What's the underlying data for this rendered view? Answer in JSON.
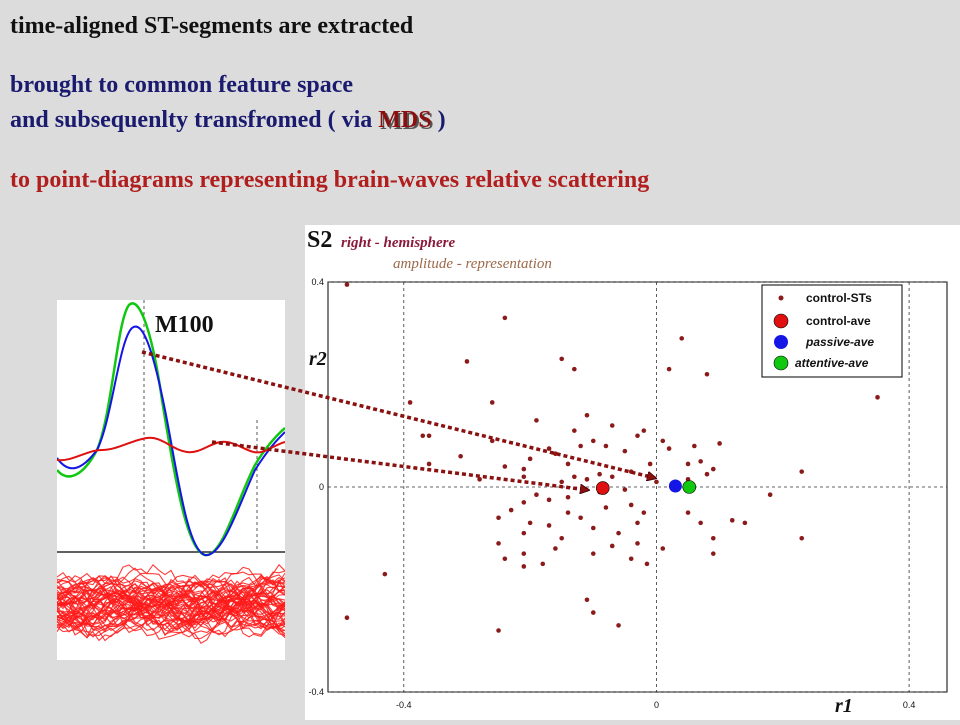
{
  "heading": {
    "line1": "time-aligned ST-segments are extracted",
    "line2": "brought to common feature space",
    "line3_prefix": "and subsequenlty transfromed  ( via ",
    "mds": "MDS",
    "line3_suffix": " )",
    "line4": "to point-diagrams representing  brain-waves relative scattering"
  },
  "waveform": {
    "label": "M100"
  },
  "colors": {
    "background": "#dcdcdc",
    "control": "#8b1a1a",
    "control_ave": "#e01010",
    "passive": "#1515e6",
    "attentive": "#10c810",
    "arrow": "#8b1010"
  },
  "chart_data": {
    "type": "scatter",
    "title": "right - hemisphere",
    "subtitle": "amplitude - representation",
    "ylabel_top": "S2",
    "ylabel": "r2",
    "xlabel": "r1",
    "xlim": [
      -0.52,
      0.46
    ],
    "ylim": [
      -0.4,
      0.4
    ],
    "x_ticks": [
      "-0.4",
      "0",
      "0.4"
    ],
    "y_ticks": [
      "0.4",
      "0",
      "-0.4"
    ],
    "x_tick_values": [
      -0.4,
      0,
      0.4
    ],
    "y_tick_values": [
      0.4,
      0,
      -0.4
    ],
    "grid": "dashed",
    "legend_position": "top-right",
    "series": [
      {
        "name": "control-STs",
        "points": [
          [
            -0.49,
            0.395
          ],
          [
            -0.49,
            -0.255
          ],
          [
            -0.24,
            0.33
          ],
          [
            -0.3,
            0.245
          ],
          [
            -0.15,
            0.25
          ],
          [
            -0.39,
            0.165
          ],
          [
            -0.26,
            0.165
          ],
          [
            -0.26,
            0.09
          ],
          [
            -0.11,
            0.14
          ],
          [
            -0.36,
            0.045
          ],
          [
            -0.37,
            0.1
          ],
          [
            -0.36,
            0.1
          ],
          [
            -0.31,
            0.06
          ],
          [
            -0.24,
            0.04
          ],
          [
            -0.28,
            0.015
          ],
          [
            -0.17,
            0.075
          ],
          [
            -0.2,
            0.055
          ],
          [
            -0.21,
            0.035
          ],
          [
            -0.21,
            0.02
          ],
          [
            -0.19,
            0.13
          ],
          [
            -0.16,
            0.065
          ],
          [
            -0.14,
            0.045
          ],
          [
            -0.13,
            0.11
          ],
          [
            -0.12,
            0.08
          ],
          [
            -0.1,
            0.09
          ],
          [
            -0.08,
            0.08
          ],
          [
            -0.07,
            0.12
          ],
          [
            -0.05,
            0.07
          ],
          [
            -0.03,
            0.1
          ],
          [
            -0.02,
            0.11
          ],
          [
            -0.01,
            0.045
          ],
          [
            0.01,
            0.09
          ],
          [
            0.02,
            0.075
          ],
          [
            0.05,
            0.045
          ],
          [
            0.06,
            0.08
          ],
          [
            0.07,
            0.05
          ],
          [
            0.09,
            0.035
          ],
          [
            0.08,
            0.025
          ],
          [
            0.05,
            0.015
          ],
          [
            0.03,
            0.01
          ],
          [
            0.0,
            0.01
          ],
          [
            -0.04,
            0.03
          ],
          [
            -0.07,
            0.02
          ],
          [
            -0.09,
            0.025
          ],
          [
            -0.11,
            0.015
          ],
          [
            -0.13,
            0.02
          ],
          [
            -0.15,
            0.01
          ],
          [
            -0.05,
            -0.005
          ],
          [
            -0.09,
            -0.01
          ],
          [
            -0.14,
            -0.02
          ],
          [
            -0.17,
            -0.025
          ],
          [
            -0.19,
            -0.015
          ],
          [
            -0.21,
            -0.03
          ],
          [
            -0.23,
            -0.045
          ],
          [
            -0.25,
            -0.06
          ],
          [
            -0.2,
            -0.07
          ],
          [
            -0.17,
            -0.075
          ],
          [
            -0.14,
            -0.05
          ],
          [
            -0.12,
            -0.06
          ],
          [
            -0.1,
            -0.08
          ],
          [
            -0.08,
            -0.04
          ],
          [
            -0.04,
            -0.035
          ],
          [
            -0.02,
            -0.05
          ],
          [
            -0.03,
            -0.07
          ],
          [
            -0.06,
            -0.09
          ],
          [
            -0.07,
            -0.115
          ],
          [
            -0.1,
            -0.13
          ],
          [
            -0.15,
            -0.1
          ],
          [
            -0.16,
            -0.12
          ],
          [
            -0.25,
            -0.11
          ],
          [
            -0.21,
            -0.09
          ],
          [
            -0.18,
            -0.15
          ],
          [
            -0.21,
            -0.13
          ],
          [
            -0.21,
            -0.155
          ],
          [
            -0.25,
            -0.28
          ],
          [
            -0.11,
            -0.22
          ],
          [
            -0.1,
            -0.245
          ],
          [
            -0.06,
            -0.27
          ],
          [
            -0.03,
            -0.11
          ],
          [
            -0.015,
            -0.15
          ],
          [
            -0.04,
            -0.14
          ],
          [
            0.01,
            -0.12
          ],
          [
            0.05,
            -0.05
          ],
          [
            0.07,
            -0.07
          ],
          [
            0.09,
            -0.1
          ],
          [
            0.12,
            -0.065
          ],
          [
            0.09,
            -0.13
          ],
          [
            0.14,
            -0.07
          ],
          [
            0.18,
            -0.015
          ],
          [
            0.23,
            -0.1
          ],
          [
            0.23,
            0.03
          ],
          [
            0.1,
            0.085
          ],
          [
            0.04,
            0.29
          ],
          [
            0.08,
            0.22
          ],
          [
            0.02,
            0.23
          ],
          [
            -0.13,
            0.23
          ],
          [
            0.35,
            0.175
          ],
          [
            -0.43,
            -0.17
          ],
          [
            -0.24,
            -0.14
          ]
        ]
      },
      {
        "name": "control-ave",
        "points": [
          [
            -0.085,
            -0.002
          ]
        ]
      },
      {
        "name": "passive-ave",
        "points": [
          [
            0.03,
            0.002
          ]
        ]
      },
      {
        "name": "attentive-ave",
        "points": [
          [
            0.052,
            0.0
          ]
        ]
      }
    ]
  }
}
